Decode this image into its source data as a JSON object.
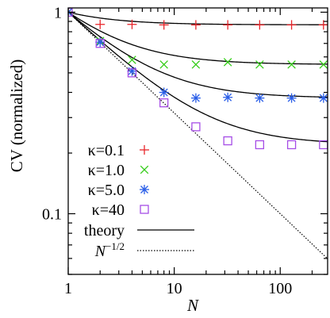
{
  "chart_data": {
    "type": "scatter",
    "x_scale": "log",
    "y_scale": "log",
    "xlabel": "N",
    "ylabel": "CV (normalized)",
    "xlim": [
      1,
      280
    ],
    "ylim": [
      0.05,
      1.05
    ],
    "x_ticks": [
      1,
      10,
      100
    ],
    "x_tick_labels": [
      "1",
      "10",
      "100"
    ],
    "y_ticks": [
      0.1,
      1
    ],
    "y_tick_labels": [
      "0.1",
      "1"
    ],
    "legend_placement": "bottom-left",
    "series": [
      {
        "name": "κ=0.1",
        "marker": "plus",
        "color": "#e8262b",
        "x": [
          1,
          2,
          4,
          8,
          16,
          32,
          64,
          128,
          256
        ],
        "y": [
          1.0,
          0.87,
          0.87,
          0.865,
          0.865,
          0.865,
          0.865,
          0.865,
          0.865
        ]
      },
      {
        "name": "κ=1.0",
        "marker": "cross",
        "color": "#33cc16",
        "x": [
          1,
          2,
          4,
          8,
          16,
          32,
          64,
          128,
          256
        ],
        "y": [
          1.0,
          0.72,
          0.58,
          0.55,
          0.55,
          0.565,
          0.55,
          0.55,
          0.55
        ]
      },
      {
        "name": "κ=5.0",
        "marker": "star",
        "color": "#2b5fe8",
        "x": [
          1,
          2,
          4,
          8,
          16,
          32,
          64,
          128,
          256
        ],
        "y": [
          1.0,
          0.71,
          0.51,
          0.4,
          0.375,
          0.378,
          0.375,
          0.375,
          0.375
        ]
      },
      {
        "name": "κ=40",
        "marker": "square",
        "color": "#a64de6",
        "x": [
          1,
          2,
          4,
          8,
          16,
          32,
          64,
          128,
          256
        ],
        "y": [
          1.0,
          0.7,
          0.5,
          0.355,
          0.27,
          0.23,
          0.22,
          0.22,
          0.22
        ]
      }
    ],
    "theory_curves": [
      {
        "plateau": 0.866
      },
      {
        "plateau": 0.55
      },
      {
        "plateau": 0.375
      },
      {
        "plateau": 0.22
      }
    ],
    "reference_line": {
      "name": "N^-1/2",
      "exponent": -0.5
    },
    "legend": [
      {
        "label": "κ=0.1",
        "kind": "marker",
        "series": 0
      },
      {
        "label": "κ=1.0",
        "kind": "marker",
        "series": 1
      },
      {
        "label": "κ=5.0",
        "kind": "marker",
        "series": 2
      },
      {
        "label": "κ=40",
        "kind": "marker",
        "series": 3
      },
      {
        "label": "theory",
        "kind": "solid"
      },
      {
        "label": "N",
        "sup": "−1/2",
        "kind": "dotted"
      }
    ]
  }
}
